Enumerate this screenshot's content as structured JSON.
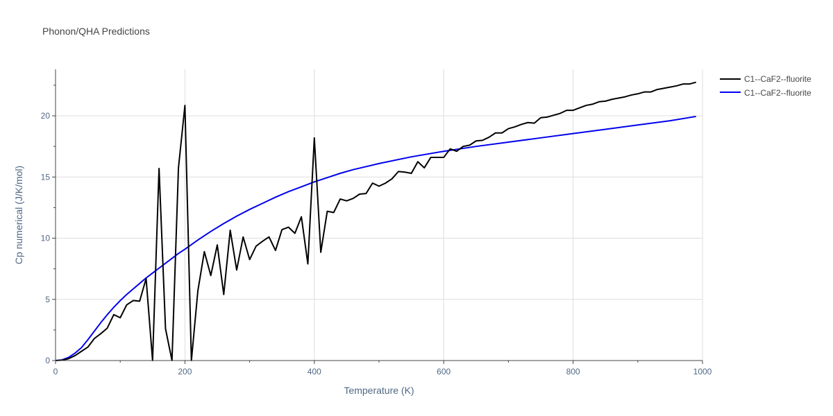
{
  "chart_data": {
    "type": "line",
    "title": "Phonon/QHA Predictions",
    "xlabel": "Temperature (K)",
    "ylabel": "Cp numerical (J/K/mol)",
    "xlim": [
      0,
      1000
    ],
    "ylim": [
      0,
      23.8
    ],
    "x_ticks": [
      0,
      200,
      400,
      600,
      800,
      1000
    ],
    "y_ticks": [
      0,
      5,
      10,
      15,
      20
    ],
    "x_tick_labels": [
      "0",
      "200",
      "400",
      "600",
      "800",
      "1000"
    ],
    "y_tick_labels": [
      "0",
      "5",
      "10",
      "15",
      "20"
    ],
    "grid": true,
    "legend_position": "top-right",
    "series": [
      {
        "name": "C1--CaF2--fluorite",
        "color": "#000000",
        "x": [
          0,
          10,
          20,
          30,
          40,
          50,
          60,
          70,
          80,
          90,
          100,
          110,
          120,
          130,
          140,
          150,
          160,
          170,
          180,
          190,
          200,
          210,
          220,
          230,
          240,
          250,
          260,
          270,
          280,
          290,
          300,
          310,
          320,
          330,
          340,
          350,
          360,
          370,
          380,
          390,
          400,
          410,
          420,
          430,
          440,
          450,
          460,
          470,
          480,
          490,
          500,
          510,
          520,
          530,
          540,
          550,
          560,
          570,
          580,
          590,
          600,
          610,
          620,
          630,
          640,
          650,
          660,
          670,
          680,
          690,
          700,
          710,
          720,
          730,
          740,
          750,
          760,
          770,
          780,
          790,
          800,
          810,
          820,
          830,
          840,
          850,
          860,
          870,
          880,
          890,
          900,
          910,
          920,
          930,
          940,
          950,
          960,
          970,
          980,
          990
        ],
        "y": [
          0,
          0.03,
          0.15,
          0.4,
          0.75,
          1.1,
          1.8,
          2.2,
          2.65,
          3.75,
          3.5,
          4.55,
          4.9,
          4.85,
          6.7,
          0,
          15.7,
          2.6,
          0,
          15.75,
          20.85,
          0,
          5.7,
          8.9,
          6.95,
          9.45,
          5.4,
          10.65,
          7.4,
          10.1,
          8.25,
          9.35,
          9.75,
          10.1,
          9.0,
          10.7,
          10.9,
          10.4,
          11.75,
          7.9,
          18.2,
          8.85,
          12.2,
          12.1,
          13.2,
          13.05,
          13.25,
          13.6,
          13.65,
          14.5,
          14.25,
          14.5,
          14.85,
          15.45,
          15.4,
          15.3,
          16.25,
          15.75,
          16.6,
          16.6,
          16.6,
          17.3,
          17.1,
          17.5,
          17.6,
          17.95,
          18.0,
          18.25,
          18.6,
          18.6,
          18.95,
          19.1,
          19.3,
          19.45,
          19.4,
          19.85,
          19.9,
          20.05,
          20.2,
          20.45,
          20.45,
          20.65,
          20.85,
          20.95,
          21.15,
          21.2,
          21.35,
          21.45,
          21.55,
          21.7,
          21.8,
          21.95,
          21.95,
          22.15,
          22.25,
          22.35,
          22.45,
          22.6,
          22.6,
          22.75
        ]
      },
      {
        "name": "C1--CaF2--fluorite",
        "color": "#0000ee",
        "x": [
          0,
          10,
          20,
          30,
          40,
          50,
          60,
          70,
          80,
          90,
          100,
          110,
          120,
          130,
          140,
          150,
          160,
          170,
          180,
          190,
          200,
          220,
          240,
          260,
          280,
          300,
          320,
          340,
          360,
          380,
          400,
          420,
          440,
          460,
          480,
          500,
          550,
          600,
          650,
          700,
          750,
          800,
          850,
          900,
          950,
          990
        ],
        "y": [
          0,
          0.05,
          0.25,
          0.6,
          1.05,
          1.7,
          2.4,
          3.1,
          3.75,
          4.35,
          4.9,
          5.4,
          5.85,
          6.3,
          6.75,
          7.15,
          7.55,
          7.95,
          8.35,
          8.75,
          9.1,
          9.85,
          10.55,
          11.2,
          11.8,
          12.35,
          12.85,
          13.35,
          13.8,
          14.2,
          14.6,
          14.95,
          15.3,
          15.6,
          15.85,
          16.1,
          16.65,
          17.1,
          17.5,
          17.85,
          18.2,
          18.55,
          18.9,
          19.25,
          19.6,
          19.95
        ]
      }
    ]
  }
}
